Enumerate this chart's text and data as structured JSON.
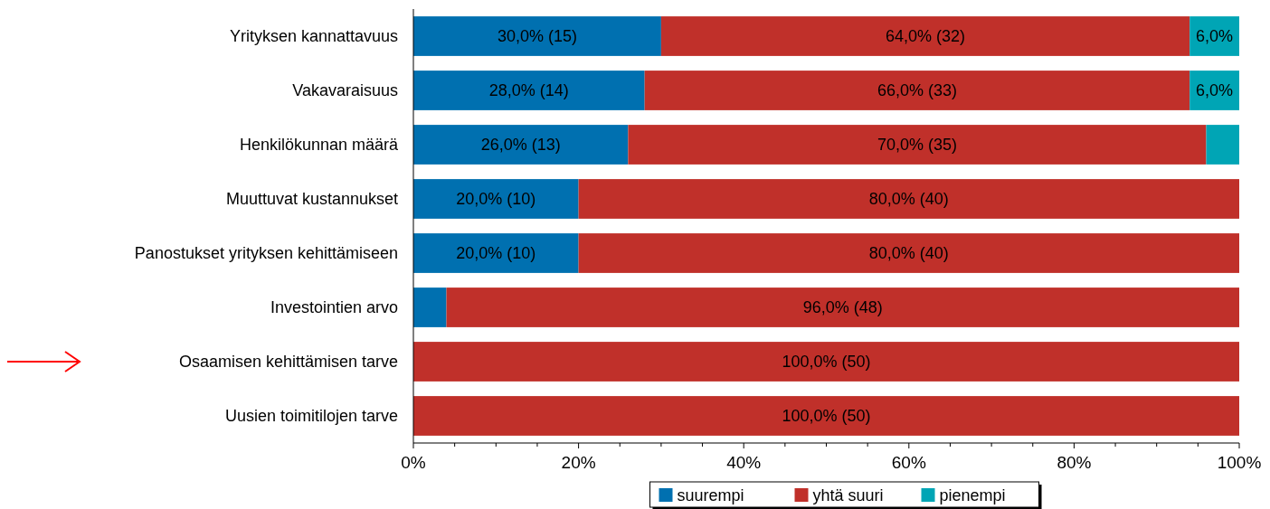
{
  "chart_data": {
    "type": "bar",
    "orientation": "horizontal",
    "stacked": true,
    "categories": [
      "Yrityksen kannattavuus",
      "Vakavaraisuus",
      "Henkilökunnan määrä",
      "Muuttuvat kustannukset",
      "Panostukset yrityksen kehittämiseen",
      "Investointien arvo",
      "Osaamisen kehittämisen tarve",
      "Uusien toimitilojen tarve"
    ],
    "series": [
      {
        "name": "suurempi",
        "color": "#0070b0",
        "values": [
          30,
          28,
          26,
          20,
          20,
          4,
          0,
          0
        ],
        "value_labels": [
          "30,0% (15)",
          "28,0% (14)",
          "26,0% (13)",
          "20,0% (10)",
          "20,0% (10)",
          null,
          null,
          null
        ]
      },
      {
        "name": "yhtä suuri",
        "color": "#c0302a",
        "values": [
          64,
          66,
          70,
          80,
          80,
          96,
          100,
          100
        ],
        "value_labels": [
          "64,0% (32)",
          "66,0% (33)",
          "70,0% (35)",
          "80,0% (40)",
          "80,0% (40)",
          "96,0% (48)",
          "100,0% (50)",
          "100,0% (50)"
        ]
      },
      {
        "name": "pienempi",
        "color": "#00a5b5",
        "values": [
          6,
          6,
          4,
          0,
          0,
          0,
          0,
          0
        ],
        "value_labels": [
          "6,0%",
          "6,0%",
          null,
          null,
          null,
          null,
          null,
          null
        ]
      }
    ],
    "xlim": [
      0,
      100
    ],
    "xticks": [
      {
        "value": 0,
        "label": "0%"
      },
      {
        "value": 5,
        "label": null
      },
      {
        "value": 10,
        "label": null
      },
      {
        "value": 15,
        "label": null
      },
      {
        "value": 20,
        "label": "20%"
      },
      {
        "value": 25,
        "label": null
      },
      {
        "value": 30,
        "label": null
      },
      {
        "value": 35,
        "label": null
      },
      {
        "value": 40,
        "label": "40%"
      },
      {
        "value": 45,
        "label": null
      },
      {
        "value": 50,
        "label": null
      },
      {
        "value": 55,
        "label": null
      },
      {
        "value": 60,
        "label": "60%"
      },
      {
        "value": 65,
        "label": null
      },
      {
        "value": 70,
        "label": null
      },
      {
        "value": 75,
        "label": null
      },
      {
        "value": 80,
        "label": "80%"
      },
      {
        "value": 85,
        "label": null
      },
      {
        "value": 90,
        "label": null
      },
      {
        "value": 95,
        "label": null
      },
      {
        "value": 100,
        "label": "100%"
      }
    ],
    "legend": "bottom"
  }
}
